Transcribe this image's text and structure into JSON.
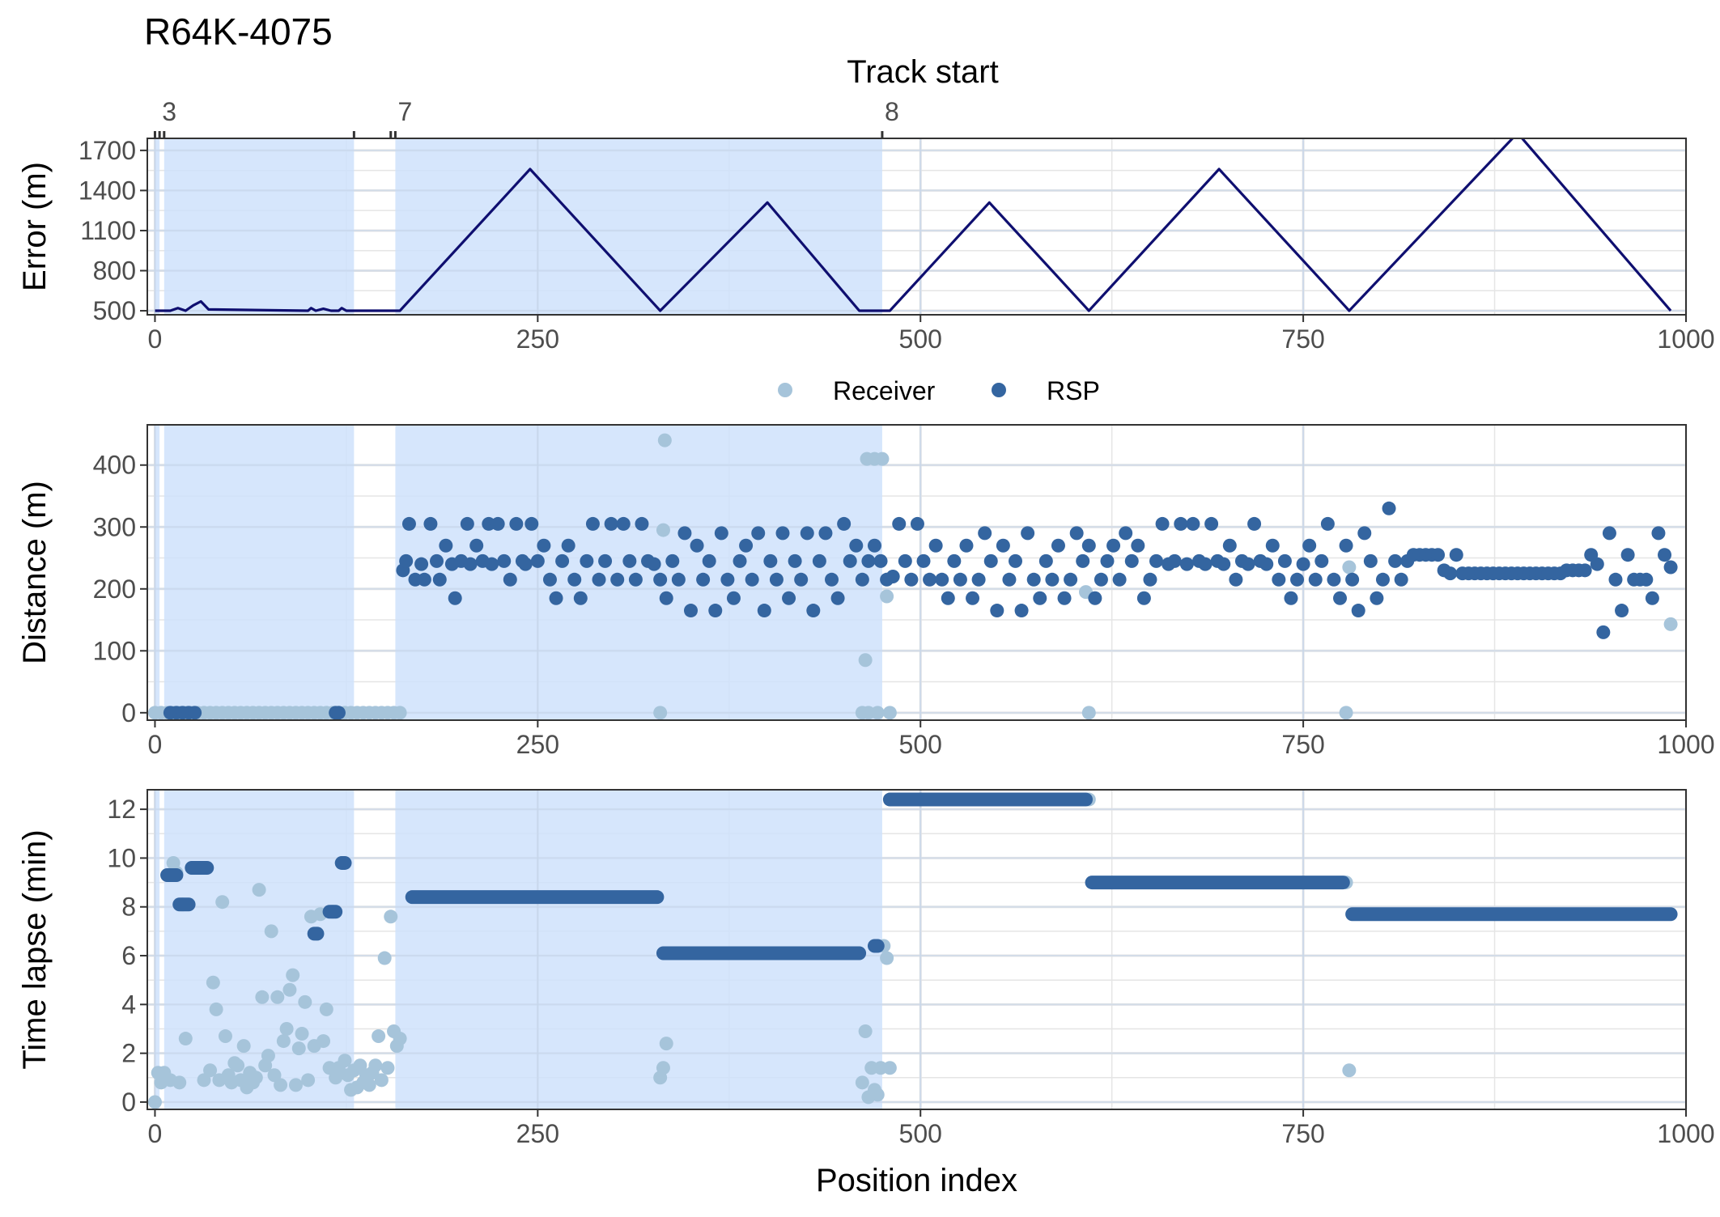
{
  "title": "R64K-4075",
  "top_axis": {
    "title": "Track start",
    "labels": [
      "3",
      "7",
      "8"
    ]
  },
  "legend": [
    {
      "name": "Receiver",
      "color": "#a6c4da"
    },
    {
      "name": "RSP",
      "color": "#3465a0"
    }
  ],
  "colors": {
    "shade": "#cfe2fc",
    "line": "#0f0f70",
    "grid": "#e5e5e5"
  },
  "chart_data": [
    {
      "type": "line",
      "ylabel": "Error (m)",
      "xlim": [
        -5,
        1000
      ],
      "ylim": [
        470,
        1790
      ],
      "yticks": [
        500,
        800,
        1100,
        1400,
        1700
      ],
      "xticks": [
        0,
        250,
        500,
        750,
        1000
      ],
      "track_starts": [
        0,
        3,
        6,
        130,
        154,
        157,
        475
      ],
      "shaded_segments": [
        [
          0,
          3
        ],
        [
          6,
          130
        ],
        [
          157,
          475
        ]
      ],
      "series": [
        {
          "name": "Error",
          "x": [
            0,
            10,
            15,
            20,
            25,
            30,
            35,
            100,
            102,
            105,
            110,
            115,
            120,
            122,
            125,
            130,
            160,
            245,
            330,
            400,
            460,
            470,
            475,
            480,
            545,
            610,
            695,
            780,
            890,
            990
          ],
          "y": [
            500,
            500,
            520,
            500,
            540,
            570,
            510,
            500,
            520,
            500,
            515,
            500,
            500,
            520,
            500,
            500,
            500,
            1560,
            500,
            1310,
            500,
            500,
            500,
            500,
            1310,
            500,
            1560,
            500,
            1830,
            500
          ]
        }
      ]
    },
    {
      "type": "scatter",
      "ylabel": "Distance (m)",
      "xlim": [
        -5,
        1000
      ],
      "ylim": [
        -12,
        465
      ],
      "yticks": [
        0,
        100,
        200,
        300,
        400
      ],
      "xticks": [
        0,
        250,
        500,
        750,
        1000
      ],
      "series": [
        {
          "name": "Receiver",
          "x": [
            0,
            4,
            8,
            12,
            16,
            20,
            24,
            28,
            32,
            36,
            40,
            44,
            48,
            52,
            56,
            60,
            64,
            68,
            72,
            76,
            80,
            84,
            88,
            92,
            96,
            100,
            104,
            108,
            112,
            116,
            120,
            124,
            128,
            132,
            136,
            140,
            144,
            148,
            152,
            156,
            160,
            330,
            332,
            333,
            462,
            464,
            465,
            466,
            470,
            472,
            475,
            478,
            480,
            610,
            608,
            778,
            780,
            990
          ],
          "y": [
            0,
            0,
            0,
            0,
            0,
            0,
            0,
            0,
            0,
            0,
            0,
            0,
            0,
            0,
            0,
            0,
            0,
            0,
            0,
            0,
            0,
            0,
            0,
            0,
            0,
            0,
            0,
            0,
            0,
            0,
            0,
            0,
            0,
            0,
            0,
            0,
            0,
            0,
            0,
            0,
            0,
            0,
            295,
            440,
            0,
            85,
            410,
            0,
            410,
            0,
            410,
            188,
            0,
            0,
            195,
            0,
            235,
            143
          ]
        },
        {
          "name": "RSP",
          "x": [
            10,
            14,
            18,
            22,
            26,
            118,
            120,
            162,
            164,
            166,
            170,
            174,
            176,
            180,
            184,
            186,
            190,
            194,
            196,
            200,
            204,
            206,
            210,
            214,
            218,
            220,
            224,
            228,
            232,
            236,
            240,
            242,
            246,
            250,
            254,
            258,
            262,
            266,
            270,
            274,
            278,
            282,
            286,
            290,
            294,
            298,
            302,
            306,
            310,
            314,
            318,
            322,
            326,
            330,
            334,
            338,
            342,
            346,
            350,
            354,
            358,
            362,
            366,
            370,
            374,
            378,
            382,
            386,
            390,
            394,
            398,
            402,
            406,
            410,
            414,
            418,
            422,
            426,
            430,
            434,
            438,
            442,
            446,
            450,
            454,
            458,
            462,
            466,
            470,
            474,
            478,
            482,
            486,
            490,
            494,
            498,
            502,
            506,
            510,
            514,
            518,
            522,
            526,
            530,
            534,
            538,
            542,
            546,
            550,
            554,
            558,
            562,
            566,
            570,
            574,
            578,
            582,
            586,
            590,
            594,
            598,
            602,
            606,
            610,
            614,
            618,
            622,
            626,
            630,
            634,
            638,
            642,
            646,
            650,
            654,
            658,
            662,
            666,
            670,
            674,
            678,
            682,
            686,
            690,
            694,
            698,
            702,
            706,
            710,
            714,
            718,
            722,
            726,
            730,
            734,
            738,
            742,
            746,
            750,
            754,
            758,
            762,
            766,
            770,
            774,
            778,
            782,
            786,
            790,
            794,
            798,
            802,
            806,
            810,
            814,
            818,
            822,
            826,
            830,
            834,
            838,
            842,
            846,
            850,
            854,
            858,
            862,
            866,
            870,
            874,
            878,
            882,
            886,
            890,
            894,
            898,
            902,
            906,
            910,
            914,
            918,
            922,
            926,
            930,
            934,
            938,
            942,
            946,
            950,
            954,
            958,
            962,
            966,
            970,
            974,
            978,
            982,
            986,
            990
          ],
          "y": [
            0,
            0,
            0,
            0,
            0,
            0,
            0,
            230,
            245,
            305,
            215,
            240,
            215,
            305,
            245,
            215,
            270,
            240,
            185,
            245,
            305,
            240,
            270,
            245,
            305,
            240,
            305,
            245,
            215,
            305,
            245,
            240,
            305,
            245,
            270,
            215,
            185,
            245,
            270,
            215,
            185,
            245,
            305,
            215,
            245,
            305,
            215,
            305,
            245,
            215,
            305,
            245,
            240,
            215,
            185,
            245,
            215,
            290,
            165,
            270,
            215,
            245,
            165,
            290,
            215,
            185,
            245,
            270,
            215,
            290,
            165,
            245,
            215,
            290,
            185,
            245,
            215,
            290,
            165,
            245,
            290,
            215,
            185,
            305,
            245,
            270,
            215,
            245,
            270,
            245,
            215,
            220,
            305,
            245,
            215,
            305,
            245,
            215,
            270,
            215,
            185,
            245,
            215,
            270,
            185,
            215,
            290,
            245,
            165,
            270,
            215,
            245,
            165,
            290,
            215,
            185,
            245,
            215,
            270,
            185,
            215,
            290,
            245,
            270,
            185,
            215,
            245,
            270,
            215,
            290,
            245,
            270,
            185,
            215,
            245,
            305,
            240,
            245,
            305,
            240,
            305,
            245,
            240,
            305,
            245,
            240,
            270,
            215,
            245,
            240,
            305,
            245,
            240,
            270,
            215,
            245,
            185,
            215,
            240,
            270,
            215,
            245,
            305,
            215,
            185,
            270,
            215,
            165,
            290,
            245,
            185,
            215,
            330,
            245,
            215,
            245,
            255,
            255,
            255,
            255,
            255,
            230,
            225,
            255,
            225,
            225,
            225,
            225,
            225,
            225,
            225,
            225,
            225,
            225,
            225,
            225,
            225,
            225,
            225,
            225,
            225,
            230,
            230,
            230,
            230,
            255,
            240,
            130,
            290,
            215,
            165,
            255,
            215,
            215,
            215,
            185,
            290,
            255,
            235
          ]
        }
      ]
    },
    {
      "type": "scatter",
      "ylabel": "Time lapse (min)",
      "xlabel": "Position index",
      "xlim": [
        -5,
        1000
      ],
      "ylim": [
        -0.3,
        12.8
      ],
      "yticks": [
        0,
        2,
        4,
        6,
        8,
        10,
        12
      ],
      "xticks": [
        0,
        250,
        500,
        750,
        1000
      ],
      "series": [
        {
          "name": "Receiver",
          "x": [
            0,
            2,
            4,
            6,
            8,
            10,
            12,
            14,
            16,
            18,
            20,
            24,
            28,
            32,
            36,
            38,
            40,
            42,
            44,
            46,
            48,
            50,
            52,
            54,
            56,
            58,
            60,
            62,
            64,
            66,
            68,
            70,
            72,
            74,
            76,
            78,
            80,
            82,
            84,
            86,
            88,
            90,
            92,
            94,
            96,
            98,
            100,
            102,
            104,
            106,
            108,
            110,
            112,
            114,
            116,
            118,
            120,
            122,
            124,
            126,
            128,
            130,
            132,
            134,
            136,
            138,
            140,
            142,
            144,
            146,
            148,
            150,
            152,
            154,
            156,
            158,
            160,
            330,
            332,
            334,
            460,
            462,
            464,
            466,
            468,
            470,
            472,
            474,
            476,
            478,
            480,
            610,
            778,
            780
          ],
          "y": [
            0,
            1.2,
            0.8,
            1.2,
            9.3,
            0.9,
            9.8,
            9.4,
            0.8,
            8.1,
            2.6,
            9.6,
            9.6,
            0.9,
            1.3,
            4.9,
            3.8,
            0.9,
            8.2,
            2.7,
            1.1,
            0.8,
            1.6,
            1.5,
            0.9,
            2.3,
            0.6,
            1.2,
            0.8,
            1.0,
            8.7,
            4.3,
            1.5,
            1.9,
            7.0,
            1.1,
            4.3,
            0.7,
            2.5,
            3.0,
            4.6,
            5.2,
            0.7,
            2.2,
            2.8,
            4.1,
            0.9,
            7.6,
            2.3,
            6.9,
            7.7,
            2.5,
            3.8,
            1.4,
            7.8,
            1.0,
            1.4,
            9.8,
            1.7,
            1.1,
            0.5,
            1.3,
            0.6,
            1.5,
            0.8,
            1.1,
            0.7,
            1.2,
            1.5,
            2.7,
            0.9,
            5.9,
            1.4,
            7.6,
            2.9,
            2.3,
            2.6,
            1.0,
            1.4,
            2.4,
            6.1,
            0.8,
            2.9,
            0.2,
            1.4,
            0.5,
            0.3,
            1.4,
            6.4,
            5.9,
            1.4,
            12.4,
            9.0,
            1.3
          ]
        },
        {
          "name": "RSP",
          "segments": [
            {
              "x": [
                8,
                14
              ],
              "y": 9.3
            },
            {
              "x": [
                16,
                22
              ],
              "y": 8.1
            },
            {
              "x": [
                24,
                34
              ],
              "y": 9.6
            },
            {
              "x": [
                104,
                106
              ],
              "y": 6.9
            },
            {
              "x": [
                114,
                118
              ],
              "y": 7.8
            },
            {
              "x": [
                122,
                124
              ],
              "y": 9.8
            },
            {
              "x": [
                168,
                328
              ],
              "y": 8.4
            },
            {
              "x": [
                332,
                460
              ],
              "y": 6.1
            },
            {
              "x": [
                470,
                472
              ],
              "y": 6.4
            },
            {
              "x": [
                480,
                608
              ],
              "y": 12.4
            },
            {
              "x": [
                612,
                776
              ],
              "y": 9.0
            },
            {
              "x": [
                782,
                990
              ],
              "y": 7.7
            }
          ]
        }
      ]
    }
  ]
}
